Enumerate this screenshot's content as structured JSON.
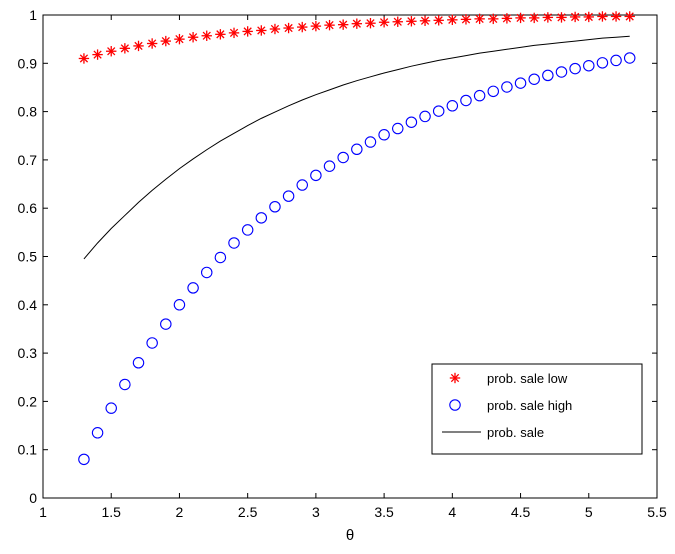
{
  "chart_data": {
    "type": "scatter",
    "xlabel": "θ",
    "ylabel": "",
    "xlim": [
      1,
      5.5
    ],
    "ylim": [
      0,
      1
    ],
    "xticks": [
      "1",
      "1.5",
      "2",
      "2.5",
      "3",
      "3.5",
      "4",
      "4.5",
      "5",
      "5.5"
    ],
    "yticks": [
      "0",
      "0.1",
      "0.2",
      "0.3",
      "0.4",
      "0.5",
      "0.6",
      "0.7",
      "0.8",
      "0.9",
      "1"
    ],
    "grid": false,
    "legend_position": "bottom-right",
    "x": [
      1.3,
      1.4,
      1.5,
      1.6,
      1.7,
      1.8,
      1.9,
      2.0,
      2.1,
      2.2,
      2.3,
      2.4,
      2.5,
      2.6,
      2.7,
      2.8,
      2.9,
      3.0,
      3.1,
      3.2,
      3.3,
      3.4,
      3.5,
      3.6,
      3.7,
      3.8,
      3.9,
      4.0,
      4.1,
      4.2,
      4.3,
      4.4,
      4.5,
      4.6,
      4.7,
      4.8,
      4.9,
      5.0,
      5.1,
      5.2,
      5.3
    ],
    "series": [
      {
        "name": "prob. sale low",
        "marker": "asterisk",
        "color": "#ff0000",
        "values": [
          0.91,
          0.918,
          0.925,
          0.931,
          0.936,
          0.941,
          0.946,
          0.95,
          0.954,
          0.957,
          0.96,
          0.963,
          0.966,
          0.968,
          0.971,
          0.973,
          0.975,
          0.977,
          0.979,
          0.98,
          0.982,
          0.983,
          0.985,
          0.986,
          0.987,
          0.988,
          0.989,
          0.99,
          0.991,
          0.992,
          0.992,
          0.993,
          0.994,
          0.994,
          0.995,
          0.995,
          0.996,
          0.996,
          0.997,
          0.997,
          0.997
        ]
      },
      {
        "name": "prob. sale high",
        "marker": "circle",
        "color": "#0000ff",
        "values": [
          0.08,
          0.135,
          0.186,
          0.235,
          0.28,
          0.321,
          0.36,
          0.4,
          0.435,
          0.467,
          0.498,
          0.528,
          0.555,
          0.58,
          0.603,
          0.625,
          0.648,
          0.668,
          0.687,
          0.705,
          0.722,
          0.737,
          0.752,
          0.765,
          0.778,
          0.79,
          0.801,
          0.812,
          0.823,
          0.833,
          0.842,
          0.851,
          0.859,
          0.867,
          0.875,
          0.882,
          0.889,
          0.895,
          0.901,
          0.906,
          0.911
        ]
      },
      {
        "name": "prob. sale",
        "marker": "line",
        "color": "#000000",
        "values": [
          0.495,
          0.528,
          0.558,
          0.585,
          0.612,
          0.637,
          0.66,
          0.682,
          0.702,
          0.721,
          0.739,
          0.755,
          0.771,
          0.786,
          0.799,
          0.812,
          0.824,
          0.835,
          0.845,
          0.855,
          0.864,
          0.872,
          0.88,
          0.887,
          0.894,
          0.9,
          0.906,
          0.911,
          0.916,
          0.921,
          0.925,
          0.929,
          0.933,
          0.937,
          0.94,
          0.943,
          0.946,
          0.949,
          0.952,
          0.954,
          0.956
        ]
      }
    ]
  }
}
